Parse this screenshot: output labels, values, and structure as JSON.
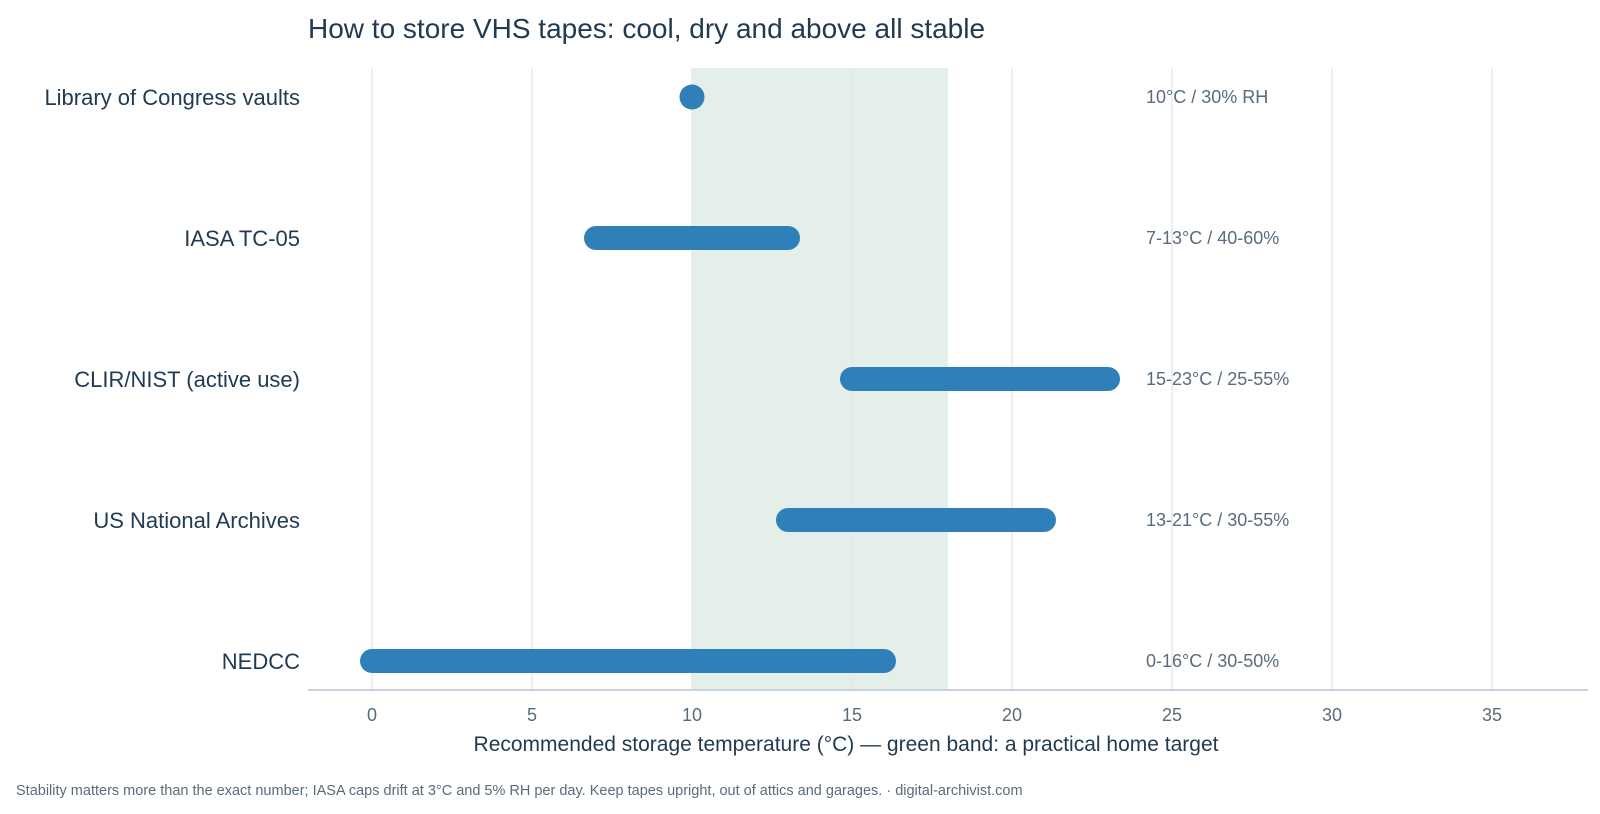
{
  "chart_data": {
    "type": "range-bar",
    "title": "How to store VHS tapes: cool, dry and above all stable",
    "xlabel": "Recommended storage temperature (°C)  —  green band: a practical home target",
    "xlim": [
      -2,
      38
    ],
    "xticks": [
      0,
      5,
      10,
      15,
      20,
      25,
      30,
      35
    ],
    "grid": true,
    "band": {
      "from": 10,
      "to": 18,
      "color": "#e3efe8"
    },
    "bar_color": "#2f7fb8",
    "rows": [
      {
        "name": "Library of Congress vaults",
        "min": 10,
        "max": 10,
        "label": "10°C / 30% RH"
      },
      {
        "name": "IASA TC-05",
        "min": 7,
        "max": 13,
        "label": "7-13°C / 40-60%"
      },
      {
        "name": "CLIR/NIST (active use)",
        "min": 15,
        "max": 23,
        "label": "15-23°C / 25-55%"
      },
      {
        "name": "US National Archives",
        "min": 13,
        "max": 21,
        "label": "13-21°C / 30-55%"
      },
      {
        "name": "NEDCC",
        "min": 0,
        "max": 16,
        "label": "0-16°C / 30-50%"
      }
    ]
  },
  "footnote": "Stability matters more than the exact number; IASA caps drift at 3°C and 5% RH per day. Keep tapes upright, out of attics and garages.  ·  digital-archivist.com"
}
